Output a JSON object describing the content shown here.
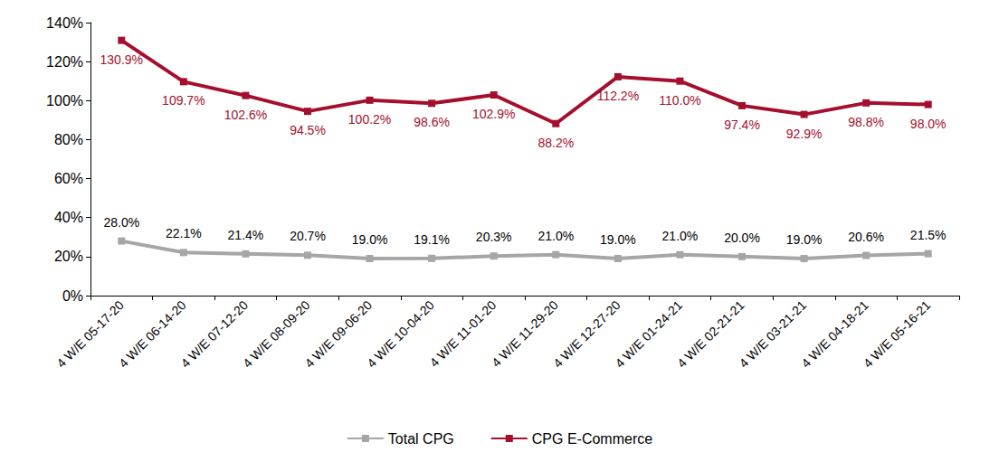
{
  "chart_data": {
    "type": "line",
    "categories": [
      "4 W/E 05-17-20",
      "4 W/E 06-14-20",
      "4 W/E 07-12-20",
      "4 W/E 08-09-20",
      "4 W/E 09-06-20",
      "4 W/E 10-04-20",
      "4 W/E 11-01-20",
      "4 W/E 11-29-20",
      "4 W/E 12-27-20",
      "4 W/E 01-24-21",
      "4 W/E 02-21-21",
      "4 W/E 03-21-21",
      "4 W/E 04-18-21",
      "4 W/E 05-16-21"
    ],
    "series": [
      {
        "name": "Total CPG",
        "color": "#a6a6a6",
        "marker": "square",
        "values": [
          28.0,
          22.1,
          21.4,
          20.7,
          19.0,
          19.1,
          20.3,
          21.0,
          19.0,
          21.0,
          20.0,
          19.0,
          20.6,
          21.5
        ],
        "value_labels": [
          "28.0%",
          "22.1%",
          "21.4%",
          "20.7%",
          "19.0%",
          "19.1%",
          "20.3%",
          "21.0%",
          "19.0%",
          "21.0%",
          "20.0%",
          "19.0%",
          "20.6%",
          "21.5%"
        ]
      },
      {
        "name": "CPG E-Commerce",
        "color": "#a50f2d",
        "marker": "square",
        "values": [
          130.9,
          109.7,
          102.6,
          94.5,
          100.2,
          98.6,
          102.9,
          88.2,
          112.2,
          110.0,
          97.4,
          92.9,
          98.8,
          98.0
        ],
        "value_labels": [
          "130.9%",
          "109.7%",
          "102.6%",
          "94.5%",
          "100.2%",
          "98.6%",
          "102.9%",
          "88.2%",
          "112.2%",
          "110.0%",
          "97.4%",
          "92.9%",
          "98.8%",
          "98.0%"
        ]
      }
    ],
    "ylim": [
      0,
      140
    ],
    "yticks": [
      {
        "value": 0,
        "label": "0%"
      },
      {
        "value": 20,
        "label": "20%"
      },
      {
        "value": 40,
        "label": "40%"
      },
      {
        "value": 60,
        "label": "60%"
      },
      {
        "value": 80,
        "label": "80%"
      },
      {
        "value": 100,
        "label": "100%"
      },
      {
        "value": 120,
        "label": "120%"
      },
      {
        "value": 140,
        "label": "140%"
      }
    ],
    "grid": false,
    "legend": "bottom",
    "data_labels": true
  }
}
